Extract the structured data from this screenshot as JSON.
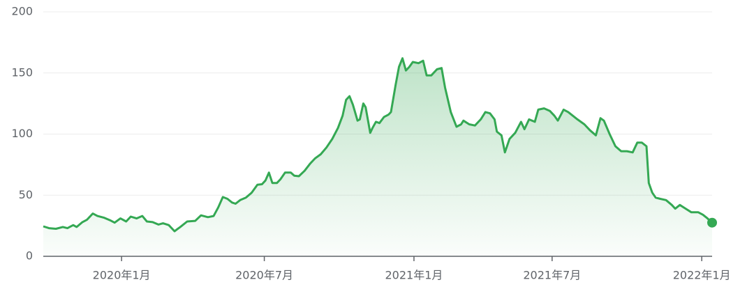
{
  "chart_data": {
    "type": "area",
    "color": "#34a853",
    "x": [
      -68,
      -63,
      -57,
      -51,
      -47,
      -42,
      -39,
      -34,
      -30,
      -25,
      -21,
      -15,
      -10,
      -6,
      -1,
      4,
      8,
      13,
      18,
      22,
      27,
      32,
      36,
      41,
      46,
      51,
      57,
      64,
      69,
      75,
      80,
      84,
      88,
      92,
      96,
      99,
      103,
      108,
      113,
      118,
      122,
      125,
      128,
      131,
      135,
      138,
      142,
      147,
      150,
      154,
      159,
      164,
      168,
      173,
      178,
      183,
      188,
      192,
      195,
      198,
      201,
      205,
      207,
      210,
      212,
      216,
      218,
      221,
      224,
      228,
      232,
      234,
      238,
      241,
      244,
      247,
      250,
      253,
      258,
      262,
      265,
      269,
      274,
      278,
      281,
      286,
      291,
      295,
      297,
      302,
      307,
      312,
      316,
      320,
      324,
      326,
      330,
      333,
      337,
      342,
      347,
      350,
      354,
      359,
      362,
      367,
      372,
      376,
      379,
      384,
      388,
      392,
      396,
      402,
      407,
      412,
      416,
      419,
      424,
      429,
      434,
      439,
      444,
      448,
      452,
      456,
      458,
      461,
      464,
      468,
      473,
      478,
      481,
      485,
      490,
      495,
      501,
      505,
      509,
      513
    ],
    "values": [
      24.5,
      23,
      22.5,
      24,
      23,
      25.5,
      24,
      28,
      30,
      35,
      33,
      31.5,
      29.5,
      27.5,
      31,
      28.5,
      32.5,
      31,
      33,
      28.5,
      28,
      26,
      27,
      25.5,
      20.5,
      24,
      28.5,
      29,
      33.5,
      32,
      33,
      40,
      48.5,
      47,
      44,
      43,
      46,
      48,
      52,
      58.5,
      59,
      62,
      68.5,
      60,
      60,
      63,
      68.5,
      68.5,
      66,
      65.5,
      70,
      76,
      80,
      83.5,
      89,
      96,
      105,
      115,
      128,
      131,
      124,
      111,
      112,
      125,
      122,
      101,
      105,
      110,
      109,
      114,
      116,
      118,
      140,
      155,
      162,
      152,
      155,
      159,
      158,
      160,
      148,
      148,
      153,
      154,
      138,
      118,
      106,
      108,
      111,
      108,
      107,
      112,
      118,
      117,
      112,
      102,
      99,
      85,
      96,
      101,
      110,
      104,
      112,
      110,
      120,
      121,
      119,
      115,
      111,
      120,
      118,
      115,
      112,
      108,
      103,
      99,
      113,
      111,
      100,
      90,
      86,
      86,
      85,
      93,
      93,
      90,
      60,
      52,
      48,
      47,
      46,
      42,
      39,
      42,
      39,
      36,
      36,
      34,
      31,
      27.5
    ],
    "xlim": [
      -68,
      513
    ],
    "xticks": [
      {
        "value": 0,
        "label": "2020年1月"
      },
      {
        "value": 124,
        "label": "2020年7月"
      },
      {
        "value": 254,
        "label": "2021年1月"
      },
      {
        "value": 374,
        "label": "2021年7月"
      },
      {
        "value": 504,
        "label": "2022年1月"
      }
    ],
    "ylim": [
      0,
      200
    ],
    "yticks": [
      0,
      50,
      100,
      150,
      200
    ],
    "grid": true
  }
}
